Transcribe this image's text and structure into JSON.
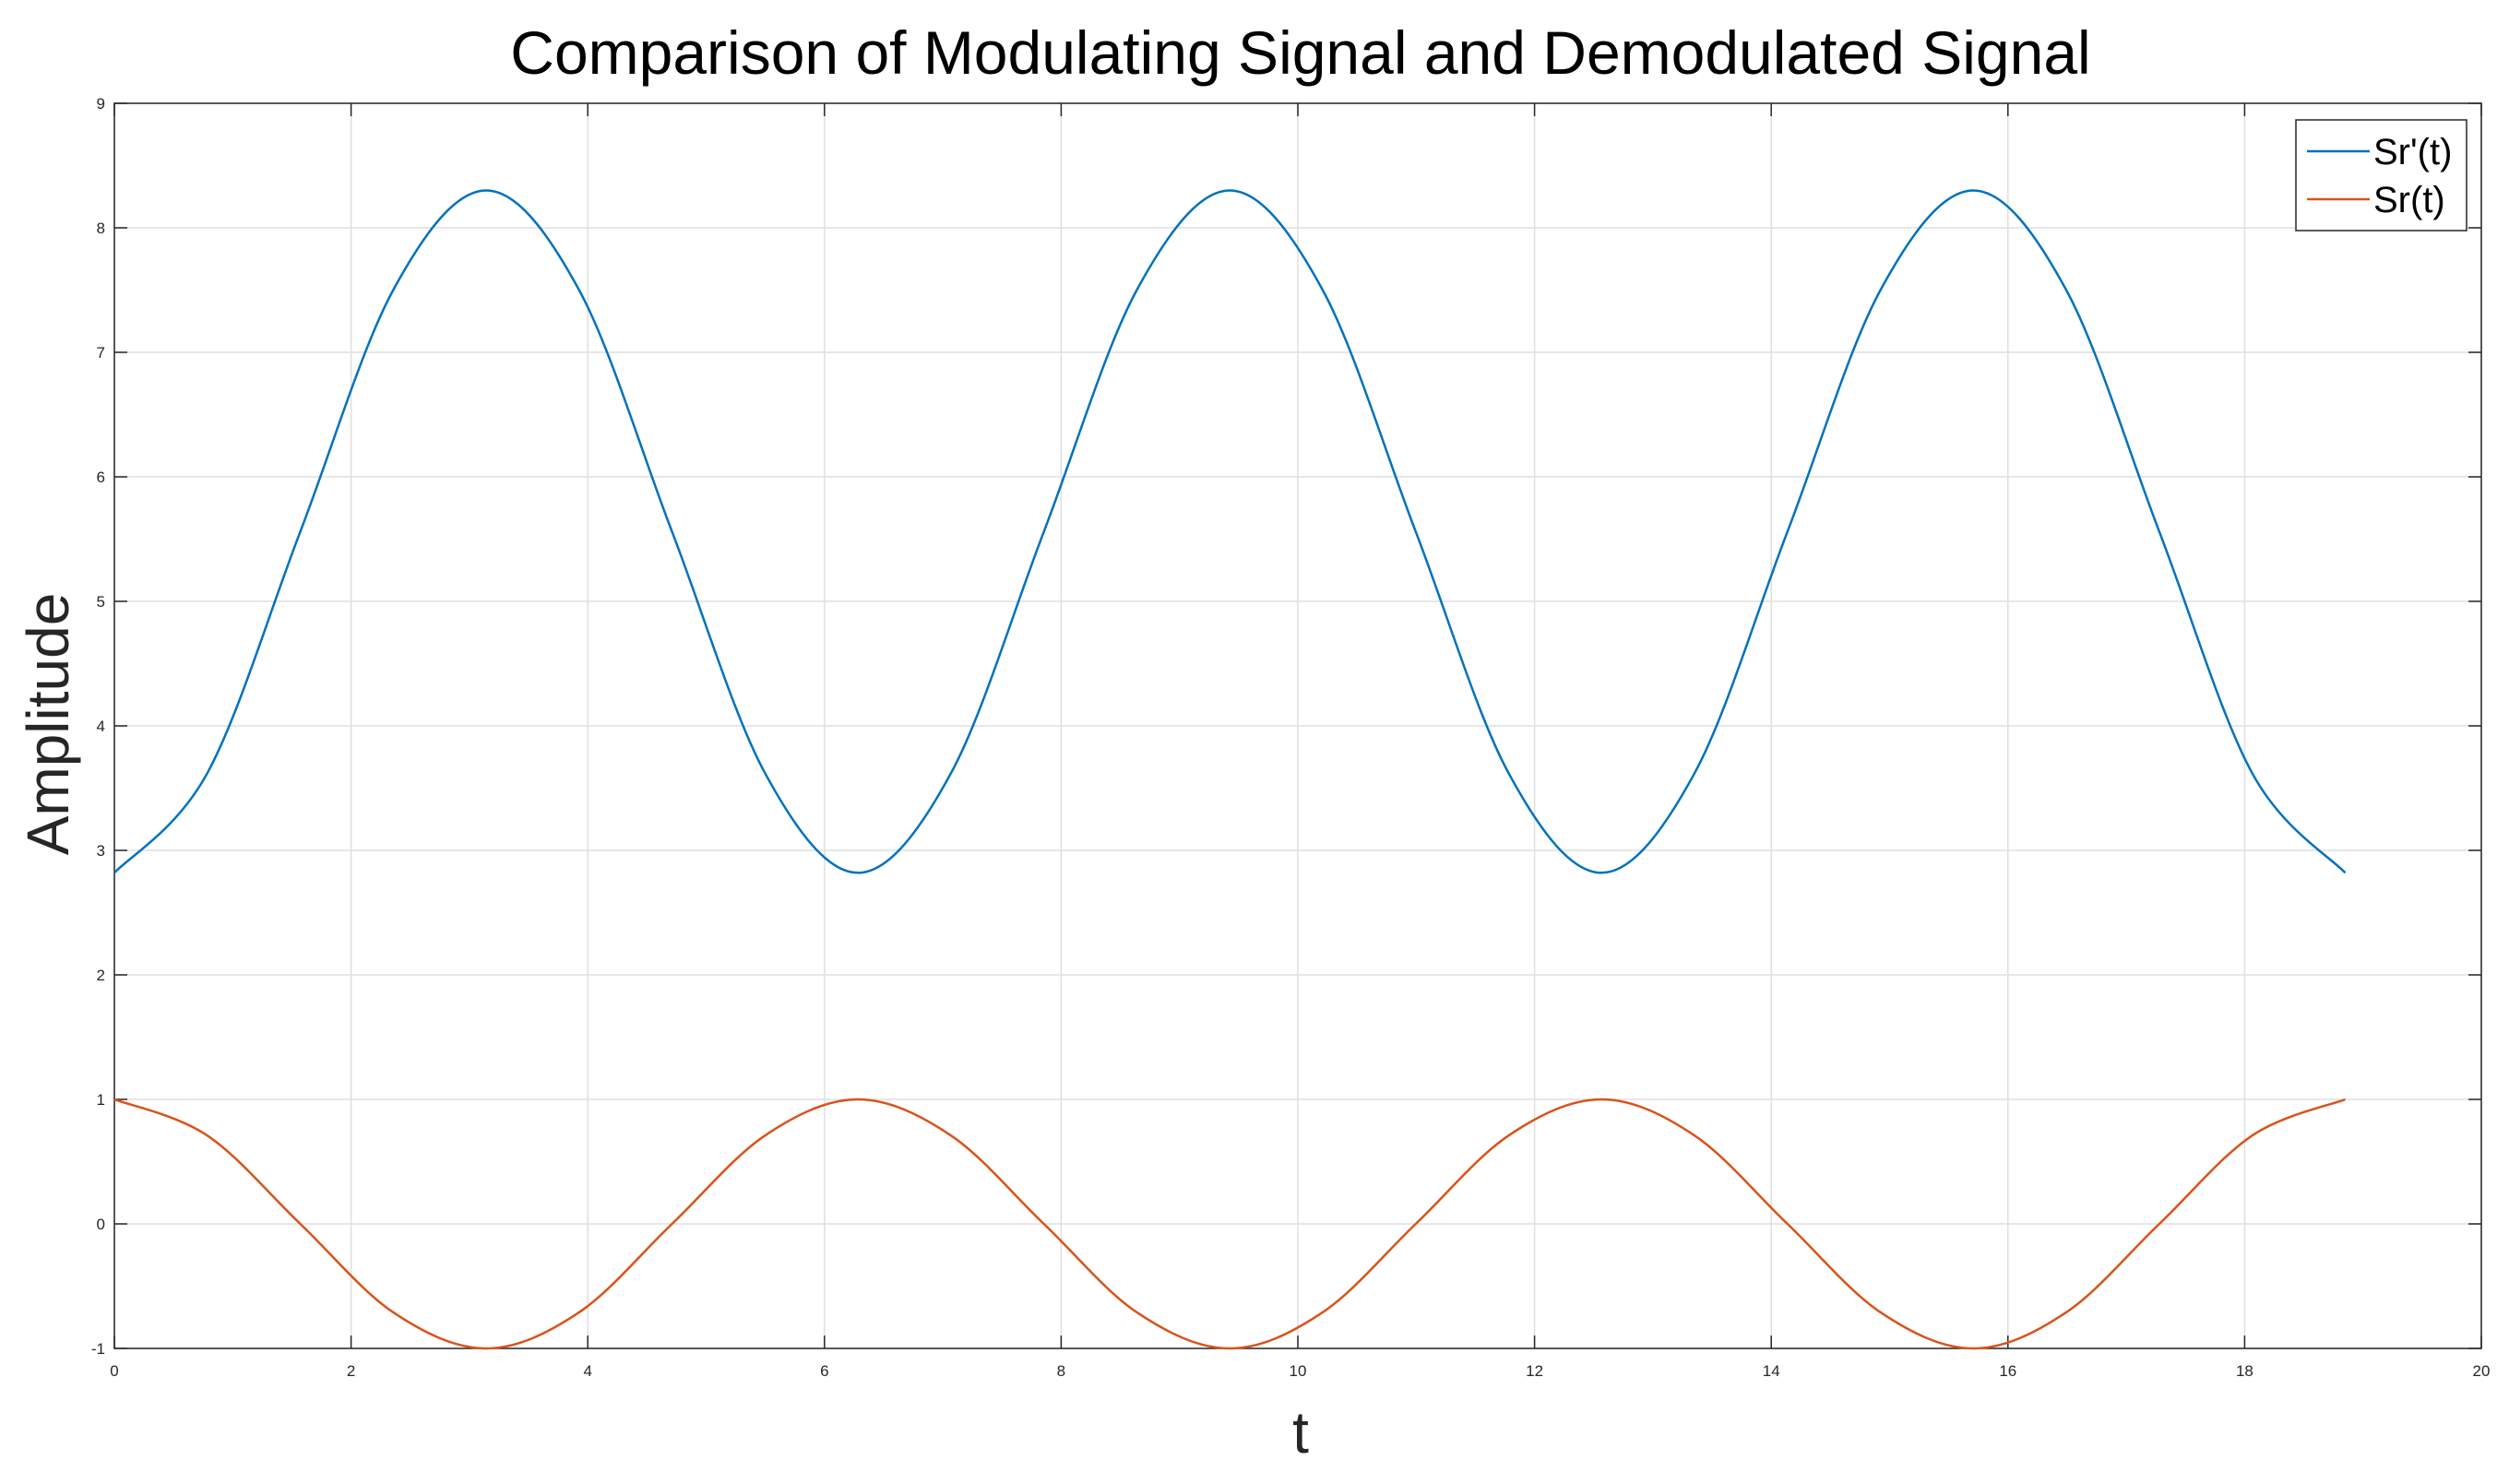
{
  "chart_data": {
    "type": "line",
    "title": "Comparison of Modulating Signal and Demodulated Signal",
    "xlabel": "t",
    "ylabel": "Amplitude",
    "xlim": [
      0,
      20
    ],
    "ylim": [
      -1,
      9
    ],
    "xticks": [
      0,
      2,
      4,
      6,
      8,
      10,
      12,
      14,
      16,
      18,
      20
    ],
    "yticks": [
      -1,
      0,
      1,
      2,
      3,
      4,
      5,
      6,
      7,
      8,
      9
    ],
    "grid": true,
    "legend_position": "top-right",
    "series": [
      {
        "name": "Sr'(t)",
        "color": "#0072BD",
        "x": [
          0,
          0.785,
          1.571,
          2.356,
          3.142,
          3.927,
          4.712,
          5.498,
          6.283,
          7.069,
          7.854,
          8.639,
          9.425,
          10.21,
          10.996,
          11.781,
          12.566,
          13.352,
          14.137,
          14.923,
          15.708,
          16.493,
          17.279,
          18.064,
          18.85
        ],
        "y": [
          2.82,
          3.62,
          5.56,
          7.5,
          8.3,
          7.5,
          5.56,
          3.62,
          2.82,
          3.62,
          5.56,
          7.5,
          8.3,
          7.5,
          5.56,
          3.62,
          2.82,
          3.62,
          5.56,
          7.5,
          8.3,
          7.5,
          5.56,
          3.62,
          2.82
        ]
      },
      {
        "name": "Sr(t)",
        "color": "#D95319",
        "x": [
          0,
          0.785,
          1.571,
          2.356,
          3.142,
          3.927,
          4.712,
          5.498,
          6.283,
          7.069,
          7.854,
          8.639,
          9.425,
          10.21,
          10.996,
          11.781,
          12.566,
          13.352,
          14.137,
          14.923,
          15.708,
          16.493,
          17.279,
          18.064,
          18.85
        ],
        "y": [
          1,
          0.71,
          0,
          -0.71,
          -1,
          -0.71,
          0,
          0.71,
          1,
          0.71,
          0,
          -0.71,
          -1,
          -0.71,
          0,
          0.71,
          1,
          0.71,
          0,
          -0.71,
          -1,
          -0.71,
          0,
          0.71,
          1
        ]
      }
    ]
  }
}
